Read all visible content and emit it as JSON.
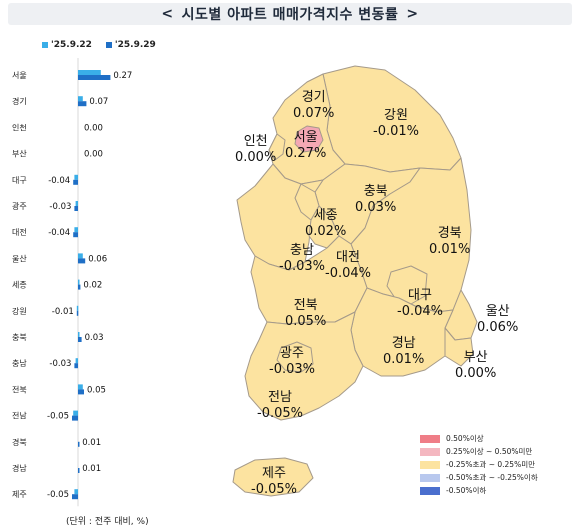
{
  "title": {
    "text": "시도별 아파트 매매가격지수 변동률",
    "left_chevron": "<",
    "right_chevron": ">"
  },
  "series_legend": [
    {
      "label": "'25.9.22",
      "color": "#3aaee8"
    },
    {
      "label": "'25.9.29",
      "color": "#1f6fc6"
    }
  ],
  "unit_note": "(단위 : 전주 대비, %)",
  "chart_data": {
    "type": "bar",
    "orientation": "horizontal",
    "categories": [
      "서울",
      "경기",
      "인천",
      "부산",
      "대구",
      "광주",
      "대전",
      "울산",
      "세종",
      "강원",
      "충북",
      "충남",
      "전북",
      "전남",
      "경북",
      "경남",
      "제주"
    ],
    "series": [
      {
        "name": "'25.9.22",
        "values": [
          0.19,
          0.04,
          0.0,
          0.0,
          -0.03,
          -0.02,
          -0.03,
          0.04,
          0.01,
          -0.01,
          0.01,
          -0.02,
          0.04,
          -0.04,
          0.0,
          0.0,
          -0.03
        ]
      },
      {
        "name": "'25.9.29",
        "values": [
          0.27,
          0.07,
          0.0,
          0.0,
          -0.04,
          -0.03,
          -0.04,
          0.06,
          0.02,
          -0.01,
          0.03,
          -0.03,
          0.05,
          -0.05,
          0.01,
          0.01,
          -0.05
        ]
      }
    ],
    "value_labels": [
      "0.27",
      "0.07",
      "0.00",
      "0.00",
      "-0.04",
      "-0.03",
      "-0.04",
      "0.06",
      "0.02",
      "-0.01",
      "0.03",
      "-0.03",
      "0.05",
      "-0.05",
      "0.01",
      "0.01",
      "-0.05"
    ]
  },
  "map": {
    "regions": [
      {
        "id": "gyeonggi",
        "name": "경기",
        "value": "0.07%",
        "color": "#fce3a0"
      },
      {
        "id": "gangwon",
        "name": "강원",
        "value": "-0.01%",
        "color": "#fce3a0"
      },
      {
        "id": "incheon",
        "name": "인천",
        "value": "0.00%",
        "color": "#fce3a0"
      },
      {
        "id": "seoul",
        "name": "서울",
        "value": "0.27%",
        "color": "#f4a8b4"
      },
      {
        "id": "chungbuk",
        "name": "충북",
        "value": "0.03%",
        "color": "#fce3a0"
      },
      {
        "id": "sejong",
        "name": "세종",
        "value": "0.02%",
        "color": "#fce3a0"
      },
      {
        "id": "chungnam",
        "name": "충남",
        "value": "-0.03%",
        "color": "#fce3a0"
      },
      {
        "id": "daejeon",
        "name": "대전",
        "value": "-0.04%",
        "color": "#fce3a0"
      },
      {
        "id": "gyeongbuk",
        "name": "경북",
        "value": "0.01%",
        "color": "#fce3a0"
      },
      {
        "id": "jeonbuk",
        "name": "전북",
        "value": "0.05%",
        "color": "#fce3a0"
      },
      {
        "id": "daegu",
        "name": "대구",
        "value": "-0.04%",
        "color": "#fce3a0"
      },
      {
        "id": "ulsan",
        "name": "울산",
        "value": "0.06%",
        "color": "#fce3a0"
      },
      {
        "id": "gwangju",
        "name": "광주",
        "value": "-0.03%",
        "color": "#fce3a0"
      },
      {
        "id": "gyeongnam",
        "name": "경남",
        "value": "0.01%",
        "color": "#fce3a0"
      },
      {
        "id": "busan",
        "name": "부산",
        "value": "0.00%",
        "color": "#fce3a0"
      },
      {
        "id": "jeonnam",
        "name": "전남",
        "value": "-0.05%",
        "color": "#fce3a0"
      },
      {
        "id": "jeju",
        "name": "제주",
        "value": "-0.05%",
        "color": "#fce3a0"
      }
    ],
    "fill_color": "#fce3a0",
    "border_color": "#a59a8a"
  },
  "color_legend": [
    {
      "label": "0.50%이상",
      "color": "#ef7d87"
    },
    {
      "label": "0.25%이상 ~ 0.50%미만",
      "color": "#f4b7c0"
    },
    {
      "label": "-0.25%초과 ~ 0.25%미만",
      "color": "#fce3a0"
    },
    {
      "label": "-0.50%초과 ~ -0.25%이하",
      "color": "#b8c8ee"
    },
    {
      "label": "-0.50%이하",
      "color": "#4a6fce"
    }
  ]
}
